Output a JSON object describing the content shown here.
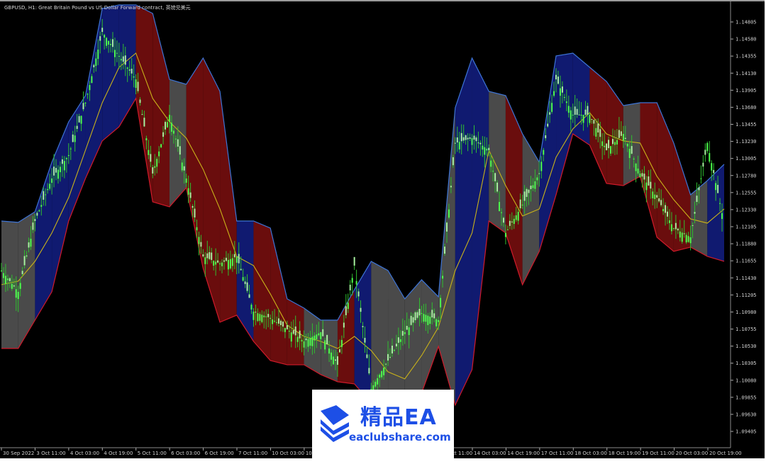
{
  "header": {
    "title": "GBPUSD, H1:  Great Britain Pound vs US Dollar Forward contract, 英镑兑美元"
  },
  "watermark": {
    "brand": "精品EA",
    "site": "eaclubshare.com",
    "logo_icon": "stacked-books-icon",
    "color": "#1d4fe6"
  },
  "colors": {
    "background": "#000000",
    "bullish_band": "#101a70",
    "bearish_band": "#6a0d0d",
    "flat_band": "#4a4a4a",
    "upper_line": "#3d74d6",
    "lower_line": "#d11a2a",
    "middle_line": "#c9b21a",
    "price": "#35e035"
  },
  "chart_data": {
    "type": "line",
    "title": "GBPUSD, H1",
    "xlabel": "",
    "ylabel": "",
    "ylim": [
      1.093,
      1.1503
    ],
    "grid": false,
    "legend": "none",
    "y_ticks": [
      "1.14805",
      "1.14580",
      "1.14355",
      "1.14130",
      "1.13905",
      "1.13680",
      "1.13455",
      "1.13230",
      "1.13005",
      "1.12780",
      "1.12555",
      "1.12330",
      "1.12105",
      "1.11880",
      "1.11655",
      "1.11430",
      "1.11205",
      "1.10980",
      "1.10755",
      "1.10530",
      "1.10305",
      "1.10080",
      "1.09855",
      "1.09630",
      "1.09405"
    ],
    "x_ticks": [
      "30 Sep 2022",
      "3 Oct 11:00",
      "4 Oct 03:00",
      "4 Oct 19:00",
      "5 Oct 11:00",
      "6 Oct 03:00",
      "6 Oct 19:00",
      "7 Oct 11:00",
      "10 Oct 03:00",
      "10 Oct 19:00",
      "11 Oct 11:00",
      "12 Oct 03:00",
      "12 Oct 19:00",
      "13 Oct 11:00",
      "14 Oct 03:00",
      "14 Oct 19:00",
      "17 Oct 11:00",
      "18 Oct 03:00",
      "18 Oct 19:00",
      "19 Oct 11:00",
      "20 Oct 03:00",
      "20 Oct 19:00"
    ],
    "x": [
      "30 Sep 2022",
      "3 Oct 03:00",
      "3 Oct 11:00",
      "3 Oct 19:00",
      "4 Oct 03:00",
      "4 Oct 11:00",
      "4 Oct 19:00",
      "5 Oct 03:00",
      "5 Oct 11:00",
      "5 Oct 19:00",
      "6 Oct 03:00",
      "6 Oct 11:00",
      "6 Oct 19:00",
      "7 Oct 03:00",
      "7 Oct 11:00",
      "7 Oct 19:00",
      "10 Oct 03:00",
      "10 Oct 11:00",
      "10 Oct 19:00",
      "11 Oct 03:00",
      "11 Oct 11:00",
      "11 Oct 19:00",
      "12 Oct 03:00",
      "12 Oct 11:00",
      "12 Oct 19:00",
      "13 Oct 03:00",
      "13 Oct 11:00",
      "13 Oct 19:00",
      "14 Oct 03:00",
      "14 Oct 11:00",
      "14 Oct 19:00",
      "17 Oct 03:00",
      "17 Oct 11:00",
      "17 Oct 19:00",
      "18 Oct 03:00",
      "18 Oct 11:00",
      "18 Oct 19:00",
      "19 Oct 03:00",
      "19 Oct 11:00",
      "19 Oct 19:00",
      "20 Oct 03:00",
      "20 Oct 11:00",
      "20 Oct 19:00",
      "21 Oct 03:00"
    ],
    "series": [
      {
        "key": "upper",
        "values": [
          1.1218,
          1.12162,
          1.12302,
          1.12956,
          1.13488,
          1.13834,
          1.14982,
          1.15029,
          1.15029,
          1.14917,
          1.14048,
          1.13983,
          1.14329,
          1.1389,
          1.1218,
          1.1218,
          1.12087,
          1.11153,
          1.11032,
          1.10873,
          1.10873,
          1.11274,
          1.11648,
          1.11527,
          1.11153,
          1.11405,
          1.11181,
          1.13675,
          1.14329,
          1.1389,
          1.13834,
          1.13329,
          1.12956,
          1.14357,
          1.14394,
          1.14207,
          1.1402,
          1.13703,
          1.1374,
          1.1374,
          1.13208,
          1.12526,
          1.12713,
          1.12928
        ]
      },
      {
        "key": "lower",
        "values": [
          1.10499,
          1.10499,
          1.10873,
          1.11246,
          1.1218,
          1.12741,
          1.13236,
          1.13423,
          1.13796,
          1.12433,
          1.12367,
          1.12619,
          1.11555,
          1.10845,
          1.10938,
          1.10593,
          1.1034,
          1.10284,
          1.10284,
          1.10154,
          1.1006,
          1.10032,
          1.0978,
          1.0978,
          1.0978,
          1.09911,
          1.10527,
          1.09752,
          1.10219,
          1.1218,
          1.12022,
          1.1134,
          1.11779,
          1.12526,
          1.13329,
          1.1318,
          1.12675,
          1.12647,
          1.12769,
          1.11966,
          1.11779,
          1.11835,
          1.11713,
          1.11648
        ]
      },
      {
        "key": "middle",
        "values": [
          1.1134,
          1.11387,
          1.11648,
          1.12022,
          1.12489,
          1.13114,
          1.1374,
          1.14207,
          1.14394,
          1.13796,
          1.13488,
          1.13273,
          1.12862,
          1.12339,
          1.11713,
          1.11592,
          1.11218,
          1.10807,
          1.10658,
          1.10593,
          1.10499,
          1.10658,
          1.10471,
          1.10191,
          1.10098,
          1.10406,
          1.10779,
          1.11527,
          1.12022,
          1.13114,
          1.12647,
          1.12246,
          1.12339,
          1.13021,
          1.13395,
          1.13609,
          1.13329,
          1.13236,
          1.13208,
          1.12769,
          1.12461,
          1.12208,
          1.12152,
          1.12339
        ]
      },
      {
        "key": "close",
        "values": [
          1.11527,
          1.11246,
          1.1218,
          1.12741,
          1.13049,
          1.1374,
          1.14674,
          1.14357,
          1.14048,
          1.12806,
          1.13581,
          1.12741,
          1.11713,
          1.1162,
          1.11713,
          1.10985,
          1.10901,
          1.10751,
          1.10593,
          1.10714,
          1.10284,
          1.11592,
          1.09967,
          1.1034,
          1.10714,
          1.10966,
          1.10873,
          1.13208,
          1.13273,
          1.13114,
          1.12022,
          1.12395,
          1.12806,
          1.14048,
          1.13581,
          1.13581,
          1.13114,
          1.13329,
          1.12806,
          1.12489,
          1.12087,
          1.11966,
          1.13208,
          1.12152
        ]
      }
    ],
    "band_state": [
      "flat",
      "flat",
      "bull",
      "bull",
      "bull",
      "bull",
      "bull",
      "bull",
      "bear",
      "bear",
      "flat",
      "bear",
      "bear",
      "bear",
      "bull",
      "bear",
      "bear",
      "bear",
      "flat",
      "flat",
      "bear",
      "bull",
      "flat",
      "flat",
      "flat",
      "flat",
      "flat",
      "bull",
      "bull",
      "flat",
      "bear",
      "flat",
      "bull",
      "bull",
      "bull",
      "bear",
      "bear",
      "flat",
      "bear",
      "bear",
      "bear",
      "flat",
      "bull",
      "flat"
    ]
  }
}
